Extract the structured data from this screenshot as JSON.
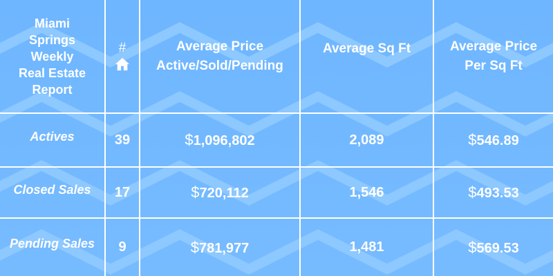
{
  "report": {
    "title_lines": [
      "Miami",
      "Springs",
      "Weekly",
      "Real Estate",
      "Report"
    ],
    "count_header_symbol": "#",
    "count_header_icon": "home-icon",
    "headers": {
      "avg_price_line1": "Average Price",
      "avg_price_line2": "Active/Sold/Pending",
      "avg_sqft": "Average Sq Ft",
      "avg_ppsf_line1": "Average Price",
      "avg_ppsf_line2": "Per Sq Ft"
    },
    "currency_symbol": "$",
    "rows": [
      {
        "label": "Actives",
        "count": "39",
        "avg_price": "1,096,802",
        "avg_sqft": "2,089",
        "avg_ppsf": "546.89"
      },
      {
        "label": "Closed Sales",
        "count": "17",
        "avg_price": "720,112",
        "avg_sqft": "1,546",
        "avg_ppsf": "493.53"
      },
      {
        "label": "Pending Sales",
        "count": "9",
        "avg_price": "781,977",
        "avg_sqft": "1,481",
        "avg_ppsf": "569.53"
      }
    ]
  },
  "colors": {
    "background": "#72b8ff",
    "zigzag": "#8cc6ff",
    "grid_lines": "#ffffff",
    "text": "#ffffff"
  }
}
